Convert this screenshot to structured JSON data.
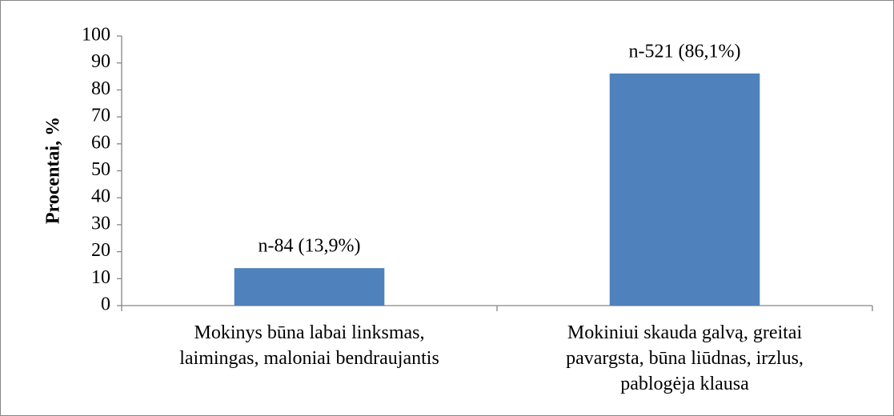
{
  "chart_data": {
    "type": "bar",
    "y_label": "Procentai, %",
    "categories": [
      "Mokinys būna labai linksmas,\nlaimingas, maloniai bendraujantis",
      "Mokiniui skauda galvą, greitai\npavargsta, būna liūdnas, irzlus,\npablogėja klausa"
    ],
    "values": [
      13.9,
      86.1
    ],
    "value_labels": [
      "n-84 (13,9%)",
      "n-521 (86,1%)"
    ],
    "color": "#4f81bd",
    "ylim": [
      0,
      100
    ],
    "yticks": [
      0,
      10,
      20,
      30,
      40,
      50,
      60,
      70,
      80,
      90,
      100
    ],
    "grid": false
  }
}
